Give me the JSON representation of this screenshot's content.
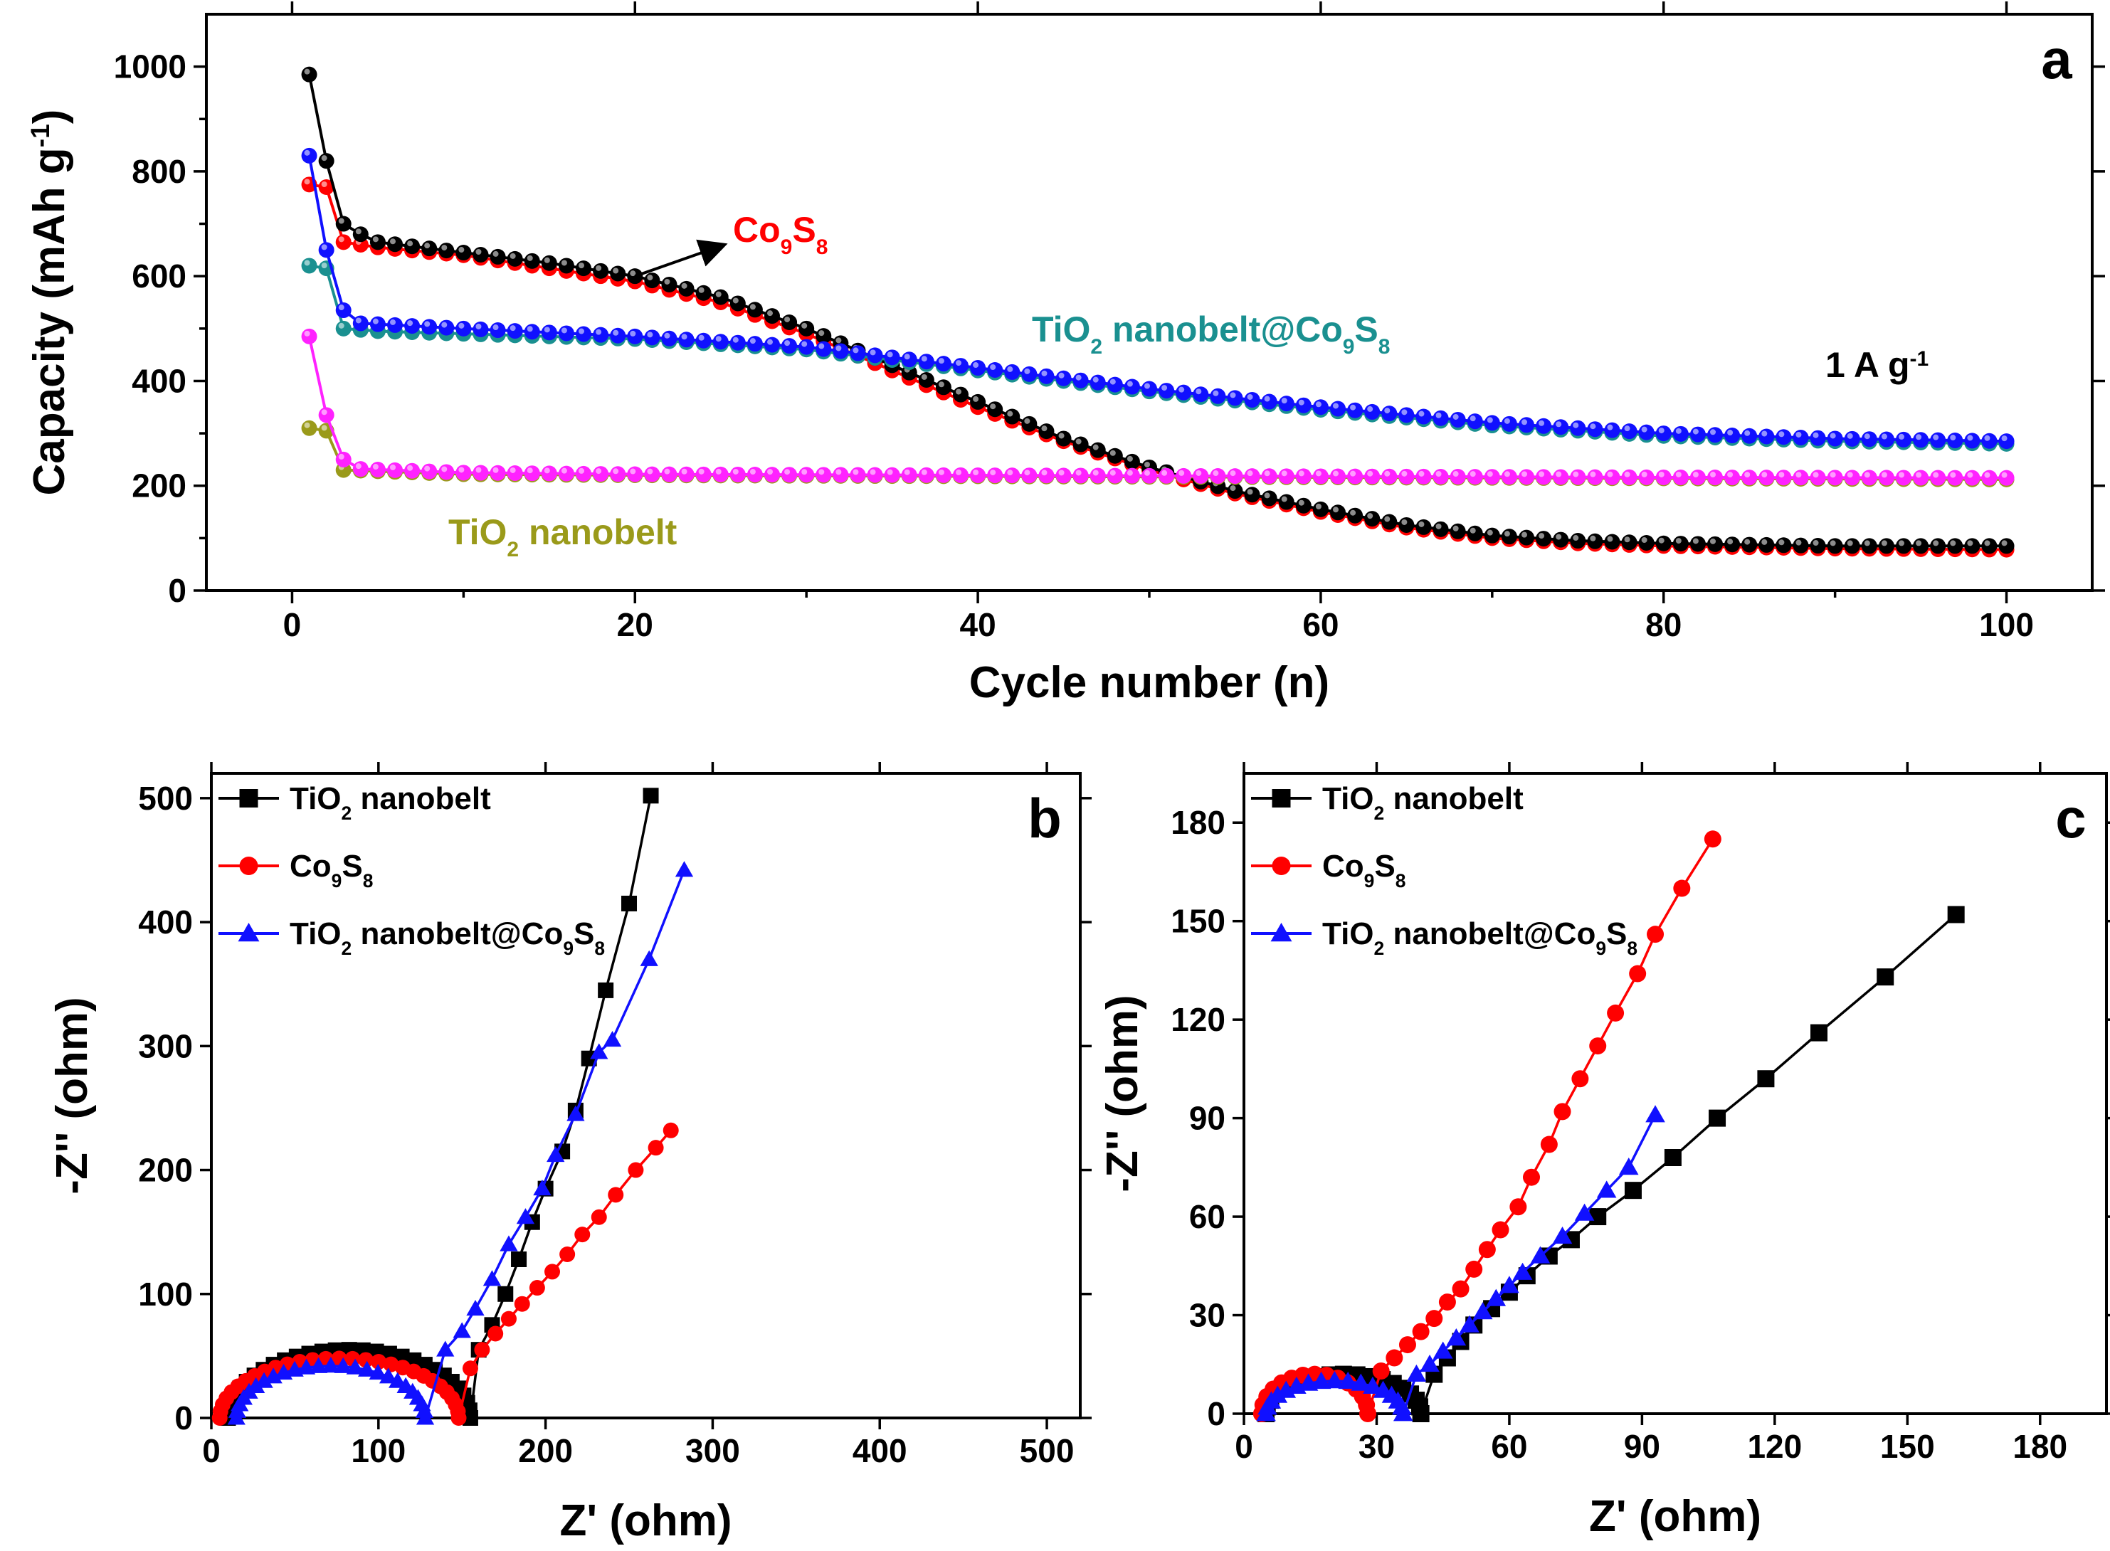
{
  "figure": {
    "background": "#ffffff"
  },
  "chart_data": [
    {
      "id": "a",
      "type": "line",
      "panel_label": "a",
      "title": "",
      "xlabel": "Cycle number (n)",
      "ylabel": "Capacity (mAh g-1)",
      "ylabel_parts": [
        "Capacity (mAh g",
        "-1",
        ")"
      ],
      "xlim": [
        -5,
        105
      ],
      "ylim": [
        0,
        1100
      ],
      "xticks": [
        0,
        20,
        40,
        60,
        80,
        100
      ],
      "yticks": [
        0,
        200,
        400,
        600,
        800,
        1000
      ],
      "x": "cycles 1-100",
      "rate_annotation": [
        "1 A g",
        "-1"
      ],
      "series": [
        {
          "name": "Co9S8",
          "color": "#ff0000",
          "marker": "circle",
          "knots": [
            [
              1,
              775
            ],
            [
              2,
              770
            ],
            [
              3,
              665
            ],
            [
              5,
              655
            ],
            [
              10,
              640
            ],
            [
              15,
              615
            ],
            [
              20,
              590
            ],
            [
              25,
              550
            ],
            [
              30,
              490
            ],
            [
              35,
              420
            ],
            [
              40,
              350
            ],
            [
              45,
              285
            ],
            [
              50,
              230
            ],
            [
              55,
              185
            ],
            [
              60,
              150
            ],
            [
              65,
              120
            ],
            [
              70,
              100
            ],
            [
              75,
              90
            ],
            [
              80,
              85
            ],
            [
              90,
              80
            ],
            [
              100,
              78
            ]
          ]
        },
        {
          "name": "Co9S8 (black)",
          "color": "#000000",
          "marker": "circle",
          "knots": [
            [
              1,
              985
            ],
            [
              2,
              820
            ],
            [
              3,
              700
            ],
            [
              4,
              680
            ],
            [
              5,
              665
            ],
            [
              10,
              645
            ],
            [
              15,
              625
            ],
            [
              20,
              600
            ],
            [
              25,
              560
            ],
            [
              30,
              500
            ],
            [
              35,
              430
            ],
            [
              40,
              360
            ],
            [
              45,
              290
            ],
            [
              50,
              235
            ],
            [
              55,
              190
            ],
            [
              60,
              155
            ],
            [
              65,
              125
            ],
            [
              70,
              105
            ],
            [
              75,
              95
            ],
            [
              80,
              90
            ],
            [
              90,
              85
            ],
            [
              100,
              85
            ]
          ]
        },
        {
          "name": "TiO2 nanobelt@Co9S8 (teal)",
          "color": "#1a9090",
          "marker": "circle",
          "knots": [
            [
              1,
              620
            ],
            [
              2,
              615
            ],
            [
              3,
              500
            ],
            [
              5,
              495
            ],
            [
              10,
              490
            ],
            [
              20,
              480
            ],
            [
              30,
              460
            ],
            [
              40,
              420
            ],
            [
              50,
              380
            ],
            [
              60,
              345
            ],
            [
              70,
              315
            ],
            [
              80,
              295
            ],
            [
              90,
              285
            ],
            [
              100,
              280
            ]
          ]
        },
        {
          "name": "TiO2 nanobelt@Co9S8",
          "color": "#1010ff",
          "marker": "circle",
          "knots": [
            [
              1,
              830
            ],
            [
              2,
              650
            ],
            [
              3,
              535
            ],
            [
              4,
              510
            ],
            [
              10,
              500
            ],
            [
              20,
              485
            ],
            [
              30,
              465
            ],
            [
              40,
              425
            ],
            [
              50,
              385
            ],
            [
              60,
              350
            ],
            [
              70,
              320
            ],
            [
              80,
              300
            ],
            [
              90,
              290
            ],
            [
              100,
              285
            ]
          ]
        },
        {
          "name": "TiO2 nanobelt",
          "color": "#9a9a1a",
          "marker": "circle",
          "knots": [
            [
              1,
              310
            ],
            [
              2,
              305
            ],
            [
              3,
              230
            ],
            [
              10,
              222
            ],
            [
              20,
              220
            ],
            [
              40,
              218
            ],
            [
              60,
              216
            ],
            [
              80,
              214
            ],
            [
              100,
              212
            ]
          ]
        },
        {
          "name": "TiO2 nanobelt (magenta)",
          "color": "#ff22ff",
          "marker": "circle",
          "knots": [
            [
              1,
              485
            ],
            [
              2,
              335
            ],
            [
              3,
              250
            ],
            [
              4,
              232
            ],
            [
              10,
              225
            ],
            [
              20,
              222
            ],
            [
              40,
              220
            ],
            [
              60,
              218
            ],
            [
              80,
              216
            ],
            [
              100,
              215
            ]
          ]
        }
      ],
      "annotations": [
        {
          "parts": [
            "Co",
            "9",
            "S",
            "8"
          ],
          "color": "#ff0000"
        },
        {
          "parts": [
            "TiO",
            "2",
            " nanobelt@Co",
            "9",
            "S",
            "8"
          ],
          "color": "#1a9090"
        },
        {
          "parts": [
            "TiO",
            "2",
            " nanobelt"
          ],
          "color": "#9a9a1a"
        }
      ]
    },
    {
      "id": "b",
      "type": "scatter",
      "panel_label": "b",
      "title": "",
      "xlabel": "Z' (ohm)",
      "ylabel": "-Z'' (ohm)",
      "xlim": [
        0,
        520
      ],
      "ylim": [
        0,
        520
      ],
      "xticks": [
        0,
        100,
        200,
        300,
        400,
        500
      ],
      "yticks": [
        0,
        100,
        200,
        300,
        400,
        500
      ],
      "legend_position": "top-left",
      "series": [
        {
          "name": "TiO2 nanobelt",
          "label_parts": [
            "TiO",
            "2",
            " nanobelt"
          ],
          "color": "#000000",
          "marker": "square",
          "arc": {
            "start": 10,
            "end": 155,
            "height": 55,
            "n": 28
          },
          "tail": [
            [
              160,
              55
            ],
            [
              168,
              75
            ],
            [
              176,
              100
            ],
            [
              184,
              128
            ],
            [
              192,
              158
            ],
            [
              200,
              185
            ],
            [
              210,
              215
            ],
            [
              218,
              248
            ],
            [
              226,
              290
            ],
            [
              236,
              345
            ],
            [
              250,
              415
            ],
            [
              263,
              502
            ]
          ]
        },
        {
          "name": "Co9S8",
          "label_parts": [
            "Co",
            "9",
            "S",
            "8"
          ],
          "color": "#ff0000",
          "marker": "circle",
          "arc": {
            "start": 5,
            "end": 148,
            "height": 48,
            "n": 28
          },
          "tail": [
            [
              155,
              40
            ],
            [
              162,
              55
            ],
            [
              170,
              68
            ],
            [
              178,
              80
            ],
            [
              186,
              92
            ],
            [
              195,
              105
            ],
            [
              204,
              118
            ],
            [
              213,
              132
            ],
            [
              222,
              148
            ],
            [
              232,
              162
            ],
            [
              242,
              180
            ],
            [
              254,
              200
            ],
            [
              266,
              218
            ],
            [
              275,
              232
            ]
          ]
        },
        {
          "name": "TiO2 nanobelt@Co9S8",
          "label_parts": [
            "TiO",
            "2",
            " nanobelt@Co",
            "9",
            "S",
            "8"
          ],
          "color": "#1010ff",
          "marker": "triangle",
          "arc": {
            "start": 15,
            "end": 128,
            "height": 42,
            "n": 24
          },
          "tail": [
            [
              140,
              55
            ],
            [
              150,
              70
            ],
            [
              158,
              88
            ],
            [
              168,
              112
            ],
            [
              178,
              140
            ],
            [
              188,
              162
            ],
            [
              198,
              185
            ],
            [
              206,
              212
            ],
            [
              218,
              245
            ],
            [
              232,
              295
            ],
            [
              240,
              305
            ],
            [
              262,
              370
            ],
            [
              283,
              442
            ]
          ]
        }
      ]
    },
    {
      "id": "c",
      "type": "scatter",
      "panel_label": "c",
      "title": "",
      "xlabel": "Z' (ohm)",
      "ylabel": "-Z'' (ohm)",
      "xlim": [
        0,
        195
      ],
      "ylim": [
        0,
        195
      ],
      "xticks": [
        0,
        30,
        60,
        90,
        120,
        150,
        180
      ],
      "yticks": [
        0,
        30,
        60,
        90,
        120,
        150,
        180
      ],
      "legend_position": "top-left",
      "series": [
        {
          "name": "TiO2 nanobelt",
          "label_parts": [
            "TiO",
            "2",
            " nanobelt"
          ],
          "color": "#000000",
          "marker": "square",
          "arc": {
            "start": 5,
            "end": 40,
            "height": 12,
            "n": 18
          },
          "tail": [
            [
              43,
              12
            ],
            [
              46,
              17
            ],
            [
              49,
              22
            ],
            [
              52,
              27
            ],
            [
              56,
              32
            ],
            [
              60,
              37
            ],
            [
              64,
              42
            ],
            [
              69,
              48
            ],
            [
              74,
              53
            ],
            [
              80,
              60
            ],
            [
              88,
              68
            ],
            [
              97,
              78
            ],
            [
              107,
              90
            ],
            [
              118,
              102
            ],
            [
              130,
              116
            ],
            [
              145,
              133
            ],
            [
              161,
              152
            ]
          ]
        },
        {
          "name": "Co9S8",
          "label_parts": [
            "Co",
            "9",
            "S",
            "8"
          ],
          "color": "#ff0000",
          "marker": "circle",
          "arc": {
            "start": 4,
            "end": 28,
            "height": 12,
            "n": 14
          },
          "tail": [
            [
              31,
              13
            ],
            [
              34,
              17
            ],
            [
              37,
              21
            ],
            [
              40,
              25
            ],
            [
              43,
              29
            ],
            [
              46,
              34
            ],
            [
              49,
              38
            ],
            [
              52,
              44
            ],
            [
              55,
              50
            ],
            [
              58,
              56
            ],
            [
              62,
              63
            ],
            [
              65,
              72
            ],
            [
              69,
              82
            ],
            [
              72,
              92
            ],
            [
              76,
              102
            ],
            [
              80,
              112
            ],
            [
              84,
              122
            ],
            [
              89,
              134
            ],
            [
              93,
              146
            ],
            [
              99,
              160
            ],
            [
              106,
              175
            ]
          ]
        },
        {
          "name": "TiO2 nanobelt@Co9S8",
          "label_parts": [
            "TiO",
            "2",
            " nanobelt@Co",
            "9",
            "S",
            "8"
          ],
          "color": "#1010ff",
          "marker": "triangle",
          "arc": {
            "start": 5,
            "end": 36,
            "height": 10,
            "n": 16
          },
          "tail": [
            [
              39,
              12
            ],
            [
              42,
              15
            ],
            [
              45,
              19
            ],
            [
              48,
              23
            ],
            [
              51,
              27
            ],
            [
              54,
              31
            ],
            [
              57,
              35
            ],
            [
              60,
              39
            ],
            [
              63,
              43
            ],
            [
              67,
              48
            ],
            [
              72,
              54
            ],
            [
              77,
              61
            ],
            [
              82,
              68
            ],
            [
              87,
              75
            ],
            [
              93,
              91
            ]
          ]
        }
      ]
    }
  ]
}
